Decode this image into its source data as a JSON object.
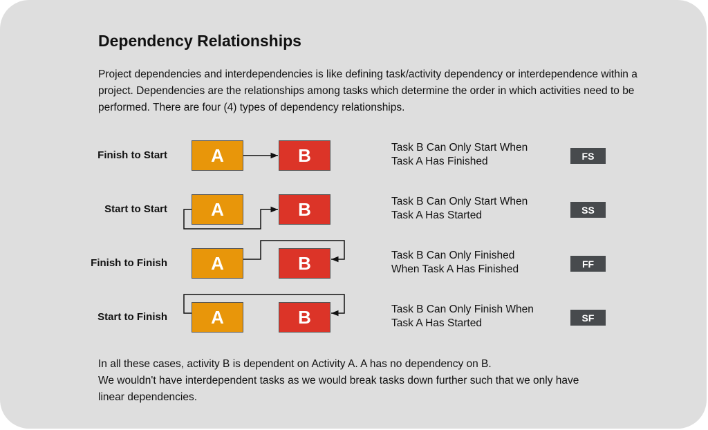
{
  "title": "Dependency Relationships",
  "intro": "Project dependencies and interdependencies is like defining task/activity dependency or interdependence within a project. Dependencies are the relationships among tasks which determine the order in which activities need to be performed. There are four (4) types of dependency relationships.",
  "colors": {
    "task_a": "#e8960a",
    "task_b": "#dc3428",
    "badge": "#474a4d",
    "card": "#dedede"
  },
  "rows": [
    {
      "label": "Finish to Start",
      "a": "A",
      "b": "B",
      "desc1": "Task B Can Only Start When",
      "desc2": "Task A Has Finished",
      "badge": "FS"
    },
    {
      "label": "Start to Start",
      "a": "A",
      "b": "B",
      "desc1": "Task B Can Only Start When",
      "desc2": "Task A Has Started",
      "badge": "SS"
    },
    {
      "label": "Finish to Finish",
      "a": "A",
      "b": "B",
      "desc1": "Task B Can Only Finished",
      "desc2": "When Task A Has Finished",
      "badge": "FF"
    },
    {
      "label": "Start to Finish",
      "a": "A",
      "b": "B",
      "desc1": "Task B Can Only Finish When",
      "desc2": "Task A Has Started",
      "badge": "SF"
    }
  ],
  "outro": [
    "In all these cases, activity B is dependent on Activity A. A has no dependency on B.",
    "We wouldn't have interdependent tasks as we would break tasks down further such that we only have linear dependencies."
  ]
}
